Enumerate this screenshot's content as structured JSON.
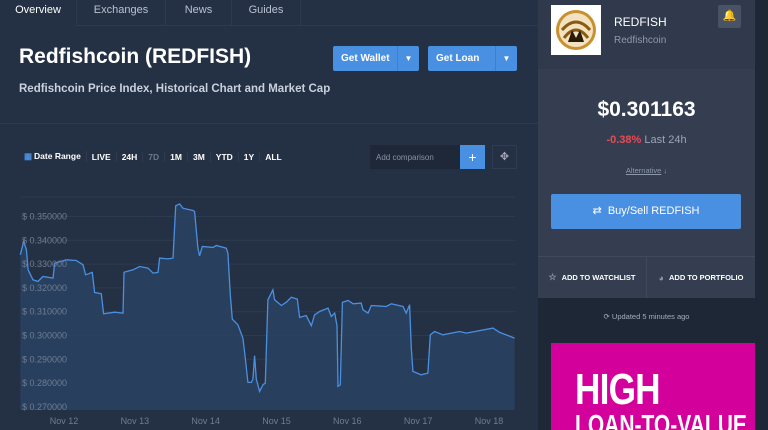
{
  "tabs": [
    {
      "label": "Overview",
      "active": true
    },
    {
      "label": "Exchanges"
    },
    {
      "label": "News"
    },
    {
      "label": "Guides"
    }
  ],
  "header": {
    "title": "Redfishcoin (REDFISH)",
    "subtitle": "Redfishcoin Price Index, Historical Chart and Market Cap",
    "get_wallet": "Get Wallet",
    "get_loan": "Get Loan"
  },
  "toolbar": {
    "date_range": "Date Range",
    "ranges": [
      "LIVE",
      "24H",
      "7D",
      "1M",
      "3M",
      "YTD",
      "1Y",
      "ALL"
    ],
    "disabled_range": "7D",
    "comparison_placeholder": "Add comparison",
    "add_label": "+"
  },
  "side": {
    "symbol": "REDFISH",
    "name": "Redfishcoin",
    "price": "$0.301163",
    "change": "-0.38%",
    "change_period": "Last 24h",
    "alternative": "Alternative",
    "buy_sell": "Buy/Sell REDFISH",
    "watchlist": "ADD TO WATCHLIST",
    "portfolio": "ADD TO PORTFOLIO",
    "updated": "Updated 5 minutes ago",
    "ad_line1": "HIGH",
    "ad_line2": "LOAN-TO-VALUE"
  },
  "colors": {
    "accent": "#4a90e2",
    "negative": "#e84b55",
    "ad": "#d3009b",
    "line": "#4a90e2"
  },
  "chart_data": {
    "type": "area",
    "ylim": [
      0.27,
      0.355
    ],
    "yticks": [
      "$ 0.350000",
      "$ 0.340000",
      "$ 0.330000",
      "$ 0.320000",
      "$ 0.310000",
      "$ 0.300000",
      "$ 0.290000",
      "$ 0.280000",
      "$ 0.270000"
    ],
    "ytick_values": [
      0.35,
      0.34,
      0.33,
      0.32,
      0.31,
      0.3,
      0.29,
      0.28,
      0.27
    ],
    "xticks": [
      "Nov 12",
      "Nov 13",
      "Nov 14",
      "Nov 15",
      "Nov 16",
      "Nov 17",
      "Nov 18"
    ],
    "grid": true,
    "x": [
      "Nov 11 09:12",
      "Nov 11 10:20",
      "Nov 11 11:15",
      "Nov 11 11:50",
      "Nov 11 13:30",
      "Nov 11 15:10",
      "Nov 11 16:53",
      "Nov 11 20:17",
      "Nov 11 20:50",
      "Nov 12 00:47",
      "Nov 12 04:10",
      "Nov 12 06:26",
      "Nov 12 07:20",
      "Nov 12 09:36",
      "Nov 12 10:23",
      "Nov 12 12:39",
      "Nov 12 13:26",
      "Nov 12 17:10",
      "Nov 12 20:00",
      "Nov 12 20:20",
      "Nov 12 23:23",
      "Nov 13 01:38",
      "Nov 13 04:28",
      "Nov 13 06:10",
      "Nov 13 07:51",
      "Nov 13 08:24",
      "Nov 13 11:13",
      "Nov 13 12:55",
      "Nov 13 13:50",
      "Nov 13 15:11",
      "Nov 13 16:18",
      "Nov 13 19:41",
      "Nov 13 20:15",
      "Nov 13 21:23",
      "Nov 13 21:57",
      "Nov 13 22:51",
      "Nov 14 02:28",
      "Nov 14 03:36",
      "Nov 14 07:00",
      "Nov 14 07:33",
      "Nov 14 08:21",
      "Nov 14 09:01",
      "Nov 14 10:56",
      "Nov 14 12:38",
      "Nov 14 13:25",
      "Nov 14 14:19",
      "Nov 14 15:27",
      "Nov 14 16:01",
      "Nov 14 16:35",
      "Nov 14 17:09",
      "Nov 14 18:17",
      "Nov 14 19:24",
      "Nov 14 20:12",
      "Nov 14 21:06",
      "Nov 14 22:47",
      "Nov 14 23:21",
      "Nov 15 01:37",
      "Nov 15 03:19",
      "Nov 15 05:01",
      "Nov 15 07:03",
      "Nov 15 07:50",
      "Nov 15 10:05",
      "Nov 15 11:47",
      "Nov 15 12:55",
      "Nov 15 14:37",
      "Nov 15 17:27",
      "Nov 15 18:35",
      "Nov 15 19:43",
      "Nov 15 20:30",
      "Nov 15 20:50",
      "Nov 15 21:38",
      "Nov 15 22:19",
      "Nov 16 00:15",
      "Nov 16 01:57",
      "Nov 16 04:42",
      "Nov 16 05:18",
      "Nov 16 07:00",
      "Nov 16 08:08",
      "Nov 16 13:13",
      "Nov 16 14:55",
      "Nov 16 18:53",
      "Nov 16 19:58",
      "Nov 16 21:06",
      "Nov 16 21:40",
      "Nov 16 22:14",
      "Nov 17 01:03",
      "Nov 17 03:19",
      "Nov 17 04:06",
      "Nov 17 05:34",
      "Nov 17 08:24",
      "Nov 17 14:03",
      "Nov 17 16:19",
      "Nov 18 01:22",
      "Nov 18 03:38",
      "Nov 18 08:41"
    ],
    "y": [
      0.3339,
      0.3395,
      0.336,
      0.3276,
      0.3234,
      0.3227,
      0.3248,
      0.3241,
      0.3304,
      0.3318,
      0.3315,
      0.3297,
      0.3255,
      0.3265,
      0.3181,
      0.3175,
      0.3091,
      0.3098,
      0.3094,
      0.3266,
      0.3276,
      0.329,
      0.3283,
      0.3262,
      0.3265,
      0.3325,
      0.3322,
      0.3325,
      0.3545,
      0.3553,
      0.3535,
      0.3525,
      0.3521,
      0.3367,
      0.3335,
      0.3374,
      0.337,
      0.3378,
      0.3367,
      0.3346,
      0.3171,
      0.3069,
      0.3045,
      0.2989,
      0.2905,
      0.2803,
      0.2803,
      0.2817,
      0.2915,
      0.2817,
      0.2765,
      0.2793,
      0.28,
      0.315,
      0.3192,
      0.315,
      0.3126,
      0.314,
      0.3161,
      0.3153,
      0.3076,
      0.3084,
      0.3041,
      0.3087,
      0.3101,
      0.3115,
      0.308,
      0.3094,
      0.3041,
      0.2786,
      0.2793,
      0.3139,
      0.3147,
      0.3133,
      0.3136,
      0.3108,
      0.3094,
      0.3126,
      0.3122,
      0.3133,
      0.3122,
      0.3094,
      0.3129,
      0.2947,
      0.2849,
      0.2835,
      0.2842,
      0.3003,
      0.3017,
      0.3003,
      0.3017,
      0.301,
      0.3031,
      0.3013,
      0.2989
    ]
  }
}
